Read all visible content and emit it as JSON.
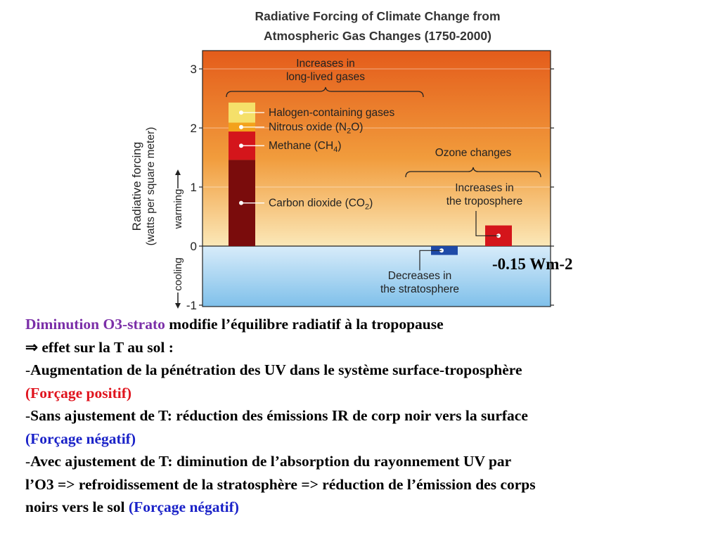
{
  "chart_data": {
    "type": "bar",
    "title": [
      "Radiative Forcing of Climate Change from",
      "Atmospheric Gas Changes (1750-2000)"
    ],
    "ylabel": [
      "Radiative forcing",
      "(watts per square meter)"
    ],
    "ylabel_direction": {
      "cooling": "cooling",
      "warming": "warming"
    },
    "ylim": [
      -1,
      3
    ],
    "yticks": [
      -1,
      0,
      1,
      2,
      3
    ],
    "grid": true,
    "background": {
      "positive": "orange gradient",
      "negative": "light blue gradient"
    },
    "stacked_bar": {
      "group_label": [
        "Increases in",
        "long-lived gases"
      ],
      "segments": [
        {
          "name": "Carbon dioxide (CO2)",
          "label_main": "Carbon dioxide (CO",
          "label_sub": "2",
          "label_end": ")",
          "value": 1.46,
          "color": "#7a0c0c"
        },
        {
          "name": "Methane (CH4)",
          "label_main": "Methane (CH",
          "label_sub": "4",
          "label_end": ")",
          "value": 0.48,
          "color": "#d4151b"
        },
        {
          "name": "Nitrous oxide (N2O)",
          "label_main": "Nitrous oxide (N",
          "label_sub": "2",
          "label_end": "O)",
          "value": 0.15,
          "color": "#f3a21c"
        },
        {
          "name": "Halogen-containing gases",
          "label_main": "Halogen-containing gases",
          "label_sub": "",
          "label_end": "",
          "value": 0.34,
          "color": "#f5e06a"
        }
      ]
    },
    "ozone": {
      "group_label": "Ozone changes",
      "bars": [
        {
          "name": "Decreases in the stratosphere",
          "label": [
            "Decreases in",
            "the stratosphere"
          ],
          "value": -0.15,
          "color": "#1f4aa8"
        },
        {
          "name": "Increases in the troposphere",
          "label": [
            "Increases in",
            "the troposphere"
          ],
          "value": 0.35,
          "color": "#d4151b"
        }
      ]
    }
  },
  "annotation": "-0.15 Wm-2",
  "text": {
    "line1_colored": "Diminution O3-strato",
    "line1_rest": " modifie l’équilibre radiatif à la tropopause",
    "line2": "⇒ effet sur la T au sol :",
    "line3_dash": "-",
    "line3": "Augmentation de la pénétration des UV dans le système surface-troposphère",
    "line4": "(Forçage positif)",
    "line5_dash": "-",
    "line5": "Sans ajustement de T: réduction des émissions IR de corp noir vers la surface",
    "line6": "(Forçage négatif)",
    "line7_dash": "-",
    "line7": "Avec ajustement de T: diminution de l’absorption du rayonnement UV par",
    "line8": "l’O3 => refroidissement de la stratosphère => réduction de l’émission des corps",
    "line9_plain": "noirs vers le sol ",
    "line9_colored": "(Forçage négatif)"
  },
  "colors": {
    "purple": "#7b2fa8",
    "red": "#e0141e",
    "blue": "#1a22c8"
  }
}
